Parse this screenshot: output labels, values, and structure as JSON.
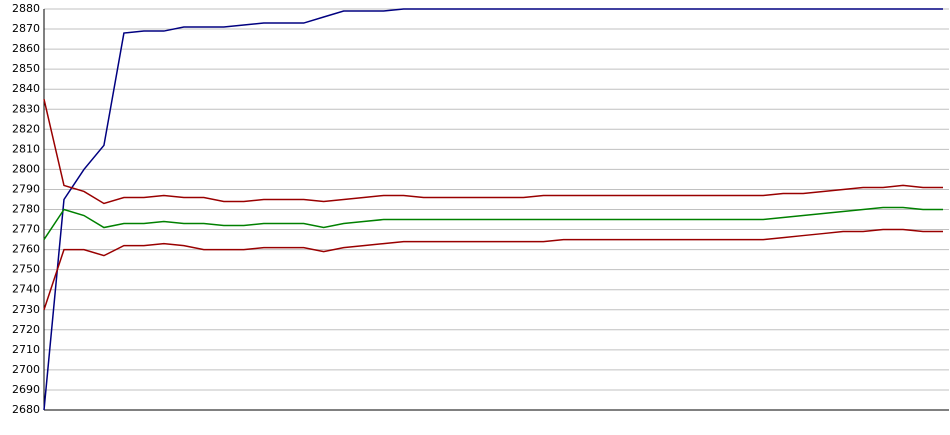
{
  "chart_data": {
    "type": "line",
    "categories": [
      null,
      null,
      null,
      null,
      null,
      null,
      null,
      null,
      null,
      null,
      null,
      null,
      null,
      null,
      null,
      null,
      null,
      null,
      null,
      null,
      null,
      null,
      null,
      null,
      null,
      null,
      null,
      null,
      null,
      null,
      null,
      null,
      null,
      null,
      null,
      null,
      null,
      null,
      null,
      null,
      null,
      null,
      null,
      null,
      null,
      null
    ],
    "series": [
      {
        "color": "#000080",
        "values": [
          2680,
          2785,
          2800,
          2812,
          2868,
          2869,
          2869,
          2871,
          2871,
          2871,
          2872,
          2873,
          2873,
          2873,
          2876,
          2879,
          2879,
          2879,
          2880,
          2880,
          2880,
          2880,
          2880,
          2880,
          2880,
          2880,
          2880,
          2880,
          2880,
          2880,
          2880,
          2880,
          2880,
          2880,
          2880,
          2880,
          2880,
          2880,
          2880,
          2880,
          2880,
          2880,
          2880,
          2880,
          2880,
          2880
        ]
      },
      {
        "color": "#990000",
        "values": [
          2835,
          2792,
          2789,
          2783,
          2786,
          2786,
          2787,
          2786,
          2786,
          2784,
          2784,
          2785,
          2785,
          2785,
          2784,
          2785,
          2786,
          2787,
          2787,
          2786,
          2786,
          2786,
          2786,
          2786,
          2786,
          2787,
          2787,
          2787,
          2787,
          2787,
          2787,
          2787,
          2787,
          2787,
          2787,
          2787,
          2787,
          2788,
          2788,
          2789,
          2790,
          2791,
          2791,
          2792,
          2791,
          2791
        ]
      },
      {
        "color": "#008000",
        "values": [
          2765,
          2780,
          2777,
          2771,
          2773,
          2773,
          2774,
          2773,
          2773,
          2772,
          2772,
          2773,
          2773,
          2773,
          2771,
          2773,
          2774,
          2775,
          2775,
          2775,
          2775,
          2775,
          2775,
          2775,
          2775,
          2775,
          2775,
          2775,
          2775,
          2775,
          2775,
          2775,
          2775,
          2775,
          2775,
          2775,
          2775,
          2776,
          2777,
          2778,
          2779,
          2780,
          2781,
          2781,
          2780,
          2780
        ]
      },
      {
        "color": "#990000",
        "values": [
          2730,
          2760,
          2760,
          2757,
          2762,
          2762,
          2763,
          2762,
          2760,
          2760,
          2760,
          2761,
          2761,
          2761,
          2759,
          2761,
          2762,
          2763,
          2764,
          2764,
          2764,
          2764,
          2764,
          2764,
          2764,
          2764,
          2765,
          2765,
          2765,
          2765,
          2765,
          2765,
          2765,
          2765,
          2765,
          2765,
          2765,
          2766,
          2767,
          2768,
          2769,
          2769,
          2770,
          2770,
          2769,
          2769
        ]
      }
    ],
    "ylim": [
      2680,
      2880
    ],
    "yticks": [
      2680,
      2690,
      2700,
      2710,
      2720,
      2730,
      2740,
      2750,
      2760,
      2770,
      2780,
      2790,
      2800,
      2810,
      2820,
      2830,
      2840,
      2850,
      2860,
      2870,
      2880
    ],
    "grid": true
  }
}
